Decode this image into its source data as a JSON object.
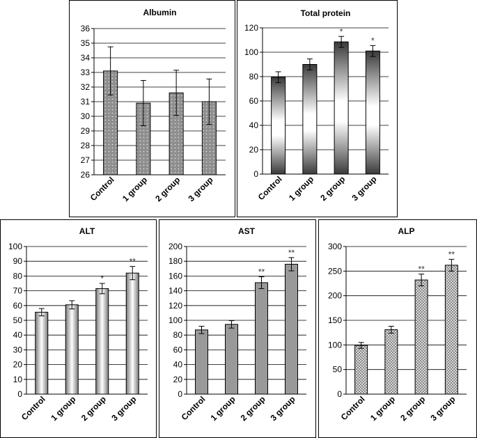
{
  "chart_data": [
    {
      "id": "albumin",
      "type": "bar",
      "title": "Albumin",
      "categories": [
        "Control",
        "1 group",
        "2 group",
        "3 group"
      ],
      "values": [
        33.1,
        30.9,
        31.6,
        31.0
      ],
      "errors": [
        1.65,
        1.55,
        1.55,
        1.55
      ],
      "significance": [
        "",
        "",
        "",
        ""
      ],
      "ylim": [
        26,
        36
      ],
      "yticks": [
        26,
        27,
        28,
        29,
        30,
        31,
        32,
        33,
        34,
        35,
        36
      ],
      "grid": true,
      "fill": "dotted-gray"
    },
    {
      "id": "total_protein",
      "type": "bar",
      "title": "Total protein",
      "categories": [
        "Control",
        "1 group",
        "2 group",
        "3 group"
      ],
      "values": [
        79.5,
        90.0,
        108.5,
        101.0
      ],
      "errors": [
        4.5,
        4.5,
        4.5,
        4.5
      ],
      "significance": [
        "",
        "",
        "*",
        "*"
      ],
      "ylim": [
        0,
        120
      ],
      "yticks": [
        0,
        20,
        40,
        60,
        80,
        100,
        120
      ],
      "grid": true,
      "fill": "vertical-gradient-dark"
    },
    {
      "id": "alt",
      "type": "bar",
      "title": "ALT",
      "categories": [
        "Control",
        "1 group",
        "2 group",
        "3 group"
      ],
      "values": [
        55.5,
        60.5,
        71.5,
        82.0
      ],
      "errors": [
        2.5,
        2.8,
        3.5,
        4.5
      ],
      "significance": [
        "",
        "",
        "*",
        "**"
      ],
      "ylim": [
        0,
        100
      ],
      "yticks": [
        0,
        10,
        20,
        30,
        40,
        50,
        60,
        70,
        80,
        90,
        100
      ],
      "grid": true,
      "fill": "horizontal-gradient-cylinder"
    },
    {
      "id": "ast",
      "type": "bar",
      "title": "AST",
      "categories": [
        "Control",
        "1 group",
        "2 group",
        "3 group"
      ],
      "values": [
        87.0,
        94.5,
        151.0,
        176.0
      ],
      "errors": [
        5.0,
        5.0,
        8.0,
        9.0
      ],
      "significance": [
        "",
        "",
        "**",
        "**"
      ],
      "ylim": [
        0,
        200
      ],
      "yticks": [
        0,
        20,
        40,
        60,
        80,
        100,
        120,
        140,
        160,
        180,
        200
      ],
      "grid": true,
      "fill": "solid-gray"
    },
    {
      "id": "alp",
      "type": "bar",
      "title": "ALP",
      "categories": [
        "Control",
        "1 group",
        "2 group",
        "3 group"
      ],
      "values": [
        99.0,
        131.0,
        232.0,
        262.0
      ],
      "errors": [
        6.0,
        7.0,
        12.0,
        12.0
      ],
      "significance": [
        "",
        "",
        "**",
        "**"
      ],
      "ylim": [
        0,
        300
      ],
      "yticks": [
        0,
        50,
        100,
        150,
        200,
        250,
        300
      ],
      "grid": true,
      "fill": "checkered-gray"
    }
  ]
}
